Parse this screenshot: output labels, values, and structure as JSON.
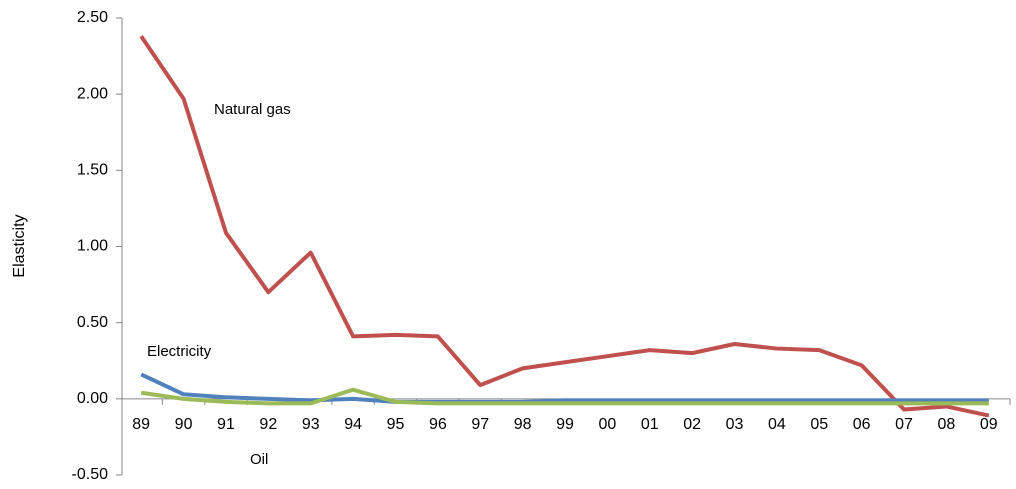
{
  "chart_data": {
    "type": "line",
    "y_label": "Elasticity",
    "categories": [
      "89",
      "90",
      "91",
      "92",
      "93",
      "94",
      "95",
      "96",
      "97",
      "98",
      "99",
      "00",
      "01",
      "02",
      "03",
      "04",
      "05",
      "06",
      "07",
      "08",
      "09"
    ],
    "series": [
      {
        "name": "Natural gas",
        "color": "#c0504d",
        "values": [
          2.38,
          1.97,
          1.09,
          0.7,
          0.96,
          0.41,
          0.42,
          0.41,
          0.09,
          0.2,
          0.24,
          0.28,
          0.32,
          0.3,
          0.36,
          0.33,
          0.32,
          0.22,
          -0.07,
          -0.05,
          -0.11
        ]
      },
      {
        "name": "Electricity",
        "color": "#4f81bd",
        "values": [
          0.16,
          0.03,
          0.01,
          0.0,
          -0.01,
          0.0,
          -0.02,
          -0.02,
          -0.02,
          -0.02,
          -0.01,
          -0.01,
          -0.01,
          -0.01,
          -0.01,
          -0.01,
          -0.01,
          -0.01,
          -0.01,
          -0.01,
          -0.01
        ]
      },
      {
        "name": "Oil",
        "color": "#9bbb59",
        "values": [
          0.04,
          0.0,
          -0.02,
          -0.03,
          -0.03,
          0.06,
          -0.02,
          -0.03,
          -0.03,
          -0.03,
          -0.03,
          -0.03,
          -0.03,
          -0.03,
          -0.03,
          -0.03,
          -0.03,
          -0.03,
          -0.03,
          -0.03,
          -0.03
        ]
      }
    ],
    "ylim": [
      -0.5,
      2.5
    ],
    "yticks": [
      {
        "value": -0.5,
        "label": "-0.50"
      },
      {
        "value": 0,
        "label": "0.00"
      },
      {
        "value": 0.5,
        "label": "0.50"
      },
      {
        "value": 1,
        "label": "1.00"
      },
      {
        "value": 1.5,
        "label": "1.50"
      },
      {
        "value": 2,
        "label": "2.00"
      },
      {
        "value": 2.5,
        "label": "2.50"
      }
    ],
    "grid": false
  }
}
